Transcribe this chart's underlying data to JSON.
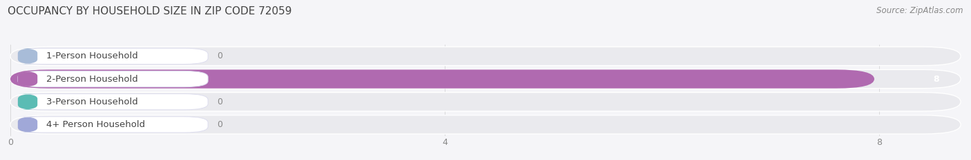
{
  "title": "OCCUPANCY BY HOUSEHOLD SIZE IN ZIP CODE 72059",
  "source": "Source: ZipAtlas.com",
  "categories": [
    "1-Person Household",
    "2-Person Household",
    "3-Person Household",
    "4+ Person Household"
  ],
  "values": [
    0,
    8,
    0,
    0
  ],
  "bar_colors": [
    "#a8bcd8",
    "#b06ab0",
    "#5bbcb4",
    "#a0a8d8"
  ],
  "row_bg_color": "#eaeaee",
  "background_color": "#f5f5f8",
  "title_color": "#444444",
  "source_color": "#888888",
  "label_text_color": "#444444",
  "value_color_inside": "#ffffff",
  "value_color_outside": "#888888",
  "xlim_max": 8.8,
  "xticks": [
    0,
    4,
    8
  ],
  "title_fontsize": 11,
  "source_fontsize": 8.5,
  "label_fontsize": 9.5,
  "value_fontsize": 9
}
